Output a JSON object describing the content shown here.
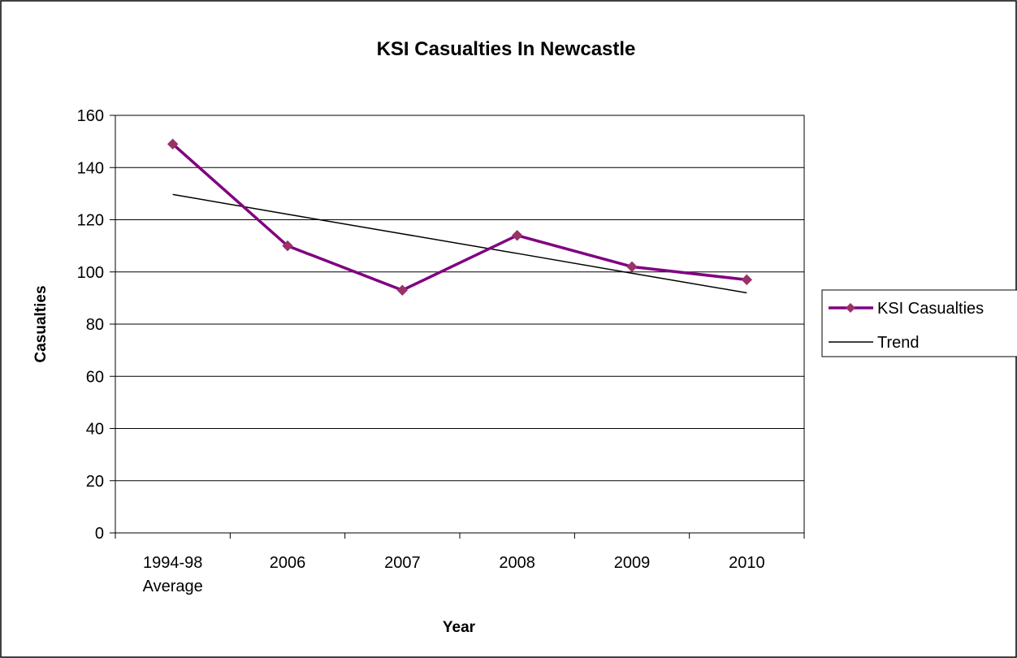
{
  "chart_data": {
    "type": "line",
    "title": "KSI Casualties In Newcastle",
    "xlabel": "Year",
    "ylabel": "Casualties",
    "categories": [
      [
        "1994-98",
        "Average"
      ],
      [
        "2006"
      ],
      [
        "2007"
      ],
      [
        "2008"
      ],
      [
        "2009"
      ],
      [
        "2010"
      ]
    ],
    "ylim": [
      0,
      160
    ],
    "yticks": [
      0,
      20,
      40,
      60,
      80,
      100,
      120,
      140,
      160
    ],
    "ytick_labels": [
      "0",
      "20",
      "40",
      "60",
      "80",
      "100",
      "120",
      "140",
      "160"
    ],
    "grid": true,
    "legend": "right",
    "series": [
      {
        "name": "KSI Casualties",
        "values": [
          149,
          110,
          93,
          114,
          102,
          97
        ],
        "color": "#800080",
        "marker_color": "#993366",
        "marker": "diamond"
      },
      {
        "name": "Trend",
        "values": [
          129.7,
          122.1,
          114.6,
          107.1,
          99.5,
          92.0
        ],
        "color": "#000000",
        "marker": "none"
      }
    ]
  }
}
